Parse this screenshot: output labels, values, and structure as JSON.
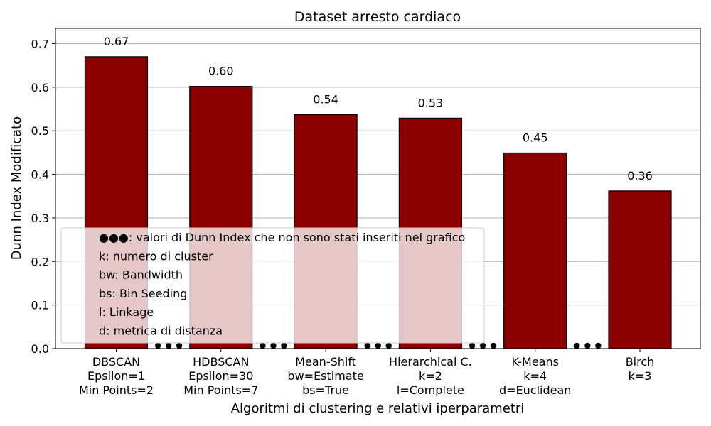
{
  "chart_data": {
    "type": "bar",
    "title": "Dataset arresto cardiaco",
    "xlabel": "Algoritmi di clustering e relativi iperparametri",
    "ylabel": "Dunn Index Modificato",
    "ylim": [
      0,
      0.735
    ],
    "yticks": [
      "0.0",
      "0.1",
      "0.2",
      "0.3",
      "0.4",
      "0.5",
      "0.6",
      "0.7"
    ],
    "grid": "horizontal",
    "categories": [
      [
        "DBSCAN",
        "Epsilon=1",
        "Min Points=2"
      ],
      [
        "HDBSCAN",
        "Epsilon=30",
        "Min Points=7"
      ],
      [
        "Mean-Shift",
        "bw=Estimate",
        "bs=True"
      ],
      [
        "Hierarchical C.",
        "k=2",
        "l=Complete"
      ],
      [
        "K-Means",
        "k=4",
        "d=Euclidean"
      ],
      [
        "Birch",
        "k=3"
      ]
    ],
    "values": [
      0.67,
      0.602,
      0.537,
      0.529,
      0.449,
      0.362
    ],
    "value_labels": [
      "0.67",
      "0.60",
      "0.54",
      "0.53",
      "0.45",
      "0.36"
    ],
    "bar_color": "#8b0000",
    "omission_marker": "●●●",
    "legend": {
      "placement": "lower-left",
      "items": [
        "●●●: valori di Dunn Index che non sono stati inseriti nel grafico",
        "k: numero di cluster",
        "bw: Bandwidth",
        "bs: Bin Seeding",
        "l: Linkage",
        "d: metrica di distanza"
      ]
    }
  }
}
